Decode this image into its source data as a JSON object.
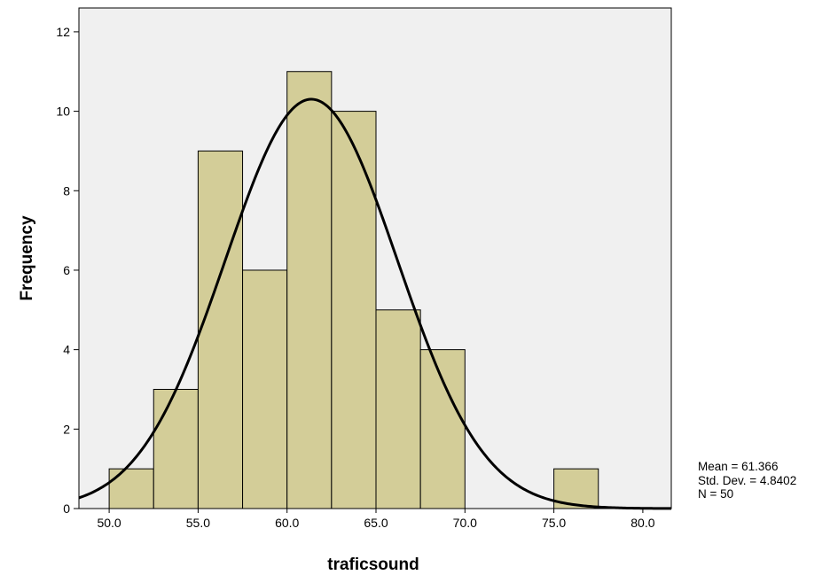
{
  "chart_data": {
    "type": "bar",
    "subtype": "histogram",
    "xlabel": "traficsound",
    "ylabel": "Frequency",
    "xlim": [
      48.3,
      81.6
    ],
    "ylim": [
      0,
      12.6
    ],
    "x_ticks": [
      "50.0",
      "55.0",
      "60.0",
      "65.0",
      "70.0",
      "75.0",
      "80.0"
    ],
    "y_ticks": [
      "0",
      "2",
      "4",
      "6",
      "8",
      "10",
      "12"
    ],
    "bins": [
      {
        "start": 50.0,
        "end": 52.5,
        "count": 1
      },
      {
        "start": 52.5,
        "end": 55.0,
        "count": 3
      },
      {
        "start": 55.0,
        "end": 57.5,
        "count": 9
      },
      {
        "start": 57.5,
        "end": 60.0,
        "count": 6
      },
      {
        "start": 60.0,
        "end": 62.5,
        "count": 11
      },
      {
        "start": 62.5,
        "end": 65.0,
        "count": 10
      },
      {
        "start": 65.0,
        "end": 67.5,
        "count": 5
      },
      {
        "start": 67.5,
        "end": 70.0,
        "count": 4
      },
      {
        "start": 75.0,
        "end": 77.5,
        "count": 1
      }
    ],
    "normal_curve": {
      "mean": 61.366,
      "std": 4.8402,
      "n": 50,
      "bin_width": 2.5
    },
    "colors": {
      "bar_fill": "#d3cd98",
      "plot_background": "#f0f0f0",
      "curve": "#000000"
    },
    "grid": false,
    "legend": "none"
  },
  "stats": {
    "mean": "Mean = 61.366",
    "std": "Std. Dev. = 4.8402",
    "n": "N = 50"
  }
}
